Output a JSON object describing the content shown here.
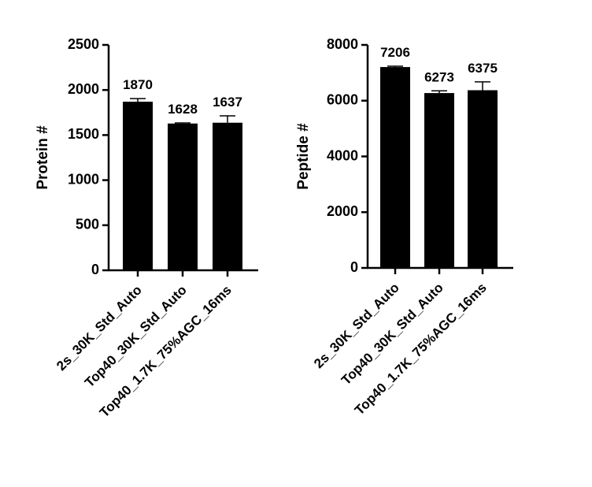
{
  "chart_data": [
    {
      "type": "bar",
      "y_label": "Protein #",
      "categories": [
        "2s_30K_Std_Auto",
        "Top40_30K_Std_Auto",
        "Top40_1.7K_75%AGC_16ms"
      ],
      "values": [
        1870,
        1628,
        1637
      ],
      "errors": [
        35,
        7,
        76
      ],
      "color": "#000000",
      "ylim": [
        0,
        2500
      ],
      "yticks": [
        0,
        500,
        1000,
        1500,
        2000,
        2500
      ]
    },
    {
      "type": "bar",
      "y_label": "Peptide #",
      "categories": [
        "2s_30K_Std_Auto",
        "Top40_30K_Std_Auto",
        "Top40_1.7K_75%AGC_16ms"
      ],
      "values": [
        7206,
        6273,
        6375
      ],
      "errors": [
        30,
        80,
        300
      ],
      "color": "#000000",
      "ylim": [
        0,
        8000
      ],
      "yticks": [
        0,
        2000,
        4000,
        6000,
        8000
      ]
    }
  ]
}
